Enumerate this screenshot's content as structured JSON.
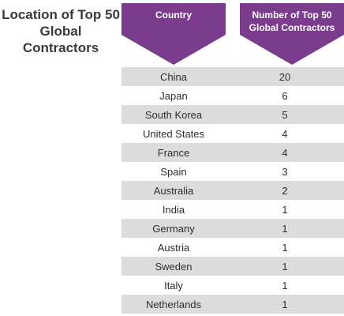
{
  "title": "Location of Top 50 Global Contractors",
  "columns": {
    "country": "Country",
    "count": "Number of Top 50 Global Contractors"
  },
  "colors": {
    "header": "#7c3c8e",
    "row_shade": "#dcdcdc"
  },
  "chart_data": {
    "type": "table",
    "title": "Location of Top 50 Global Contractors",
    "columns": [
      "Country",
      "Number of Top 50 Global Contractors"
    ],
    "rows": [
      {
        "country": "China",
        "count": "20"
      },
      {
        "country": "Japan",
        "count": "6"
      },
      {
        "country": "South Korea",
        "count": "5"
      },
      {
        "country": "United States",
        "count": "4"
      },
      {
        "country": "France",
        "count": "4"
      },
      {
        "country": "Spain",
        "count": "3"
      },
      {
        "country": "Australia",
        "count": "2"
      },
      {
        "country": "India",
        "count": "1"
      },
      {
        "country": "Germany",
        "count": "1"
      },
      {
        "country": "Austria",
        "count": "1"
      },
      {
        "country": "Sweden",
        "count": "1"
      },
      {
        "country": "Italy",
        "count": "1"
      },
      {
        "country": "Netherlands",
        "count": "1"
      }
    ]
  }
}
